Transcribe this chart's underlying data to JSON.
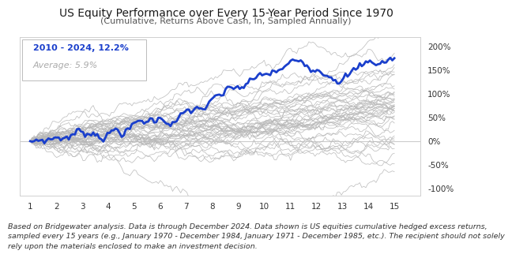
{
  "title": "US Equity Performance over Every 15-Year Period Since 1970",
  "subtitle": "(Cumulative, Returns Above Cash, In, Sampled Annually)",
  "highlight_label": "2010 - 2024, 12.2%",
  "average_label": "Average: 5.9%",
  "xlabel_ticks": [
    1,
    2,
    3,
    4,
    5,
    6,
    7,
    8,
    9,
    10,
    11,
    12,
    13,
    14,
    15
  ],
  "ylabel_ticks": [
    -100,
    -50,
    0,
    50,
    100,
    150,
    200
  ],
  "ylim": [
    -115,
    220
  ],
  "xlim": [
    0.6,
    16.0
  ],
  "footnote_line1": "Based on Bridgewater analysis. Data is through December 2024. Data shown is US equities cumulative hedged excess returns,",
  "footnote_line2": "sampled every 15 years (e.g., January 1970 - December 1984, January 1971 - December 1985, etc.). The recipient should not solely",
  "footnote_line3": "rely upon the materials enclosed to make an investment decision.",
  "highlight_color": "#1a3fcc",
  "gray_color": "#b8b8b8",
  "background_color": "#ffffff",
  "plot_bg_color": "#ffffff",
  "title_fontsize": 10.0,
  "subtitle_fontsize": 8.0,
  "footnote_fontsize": 6.8,
  "label_fontsize": 8.0,
  "tick_fontsize": 7.5,
  "n_gray_series": 45,
  "n_points": 180,
  "highlight_seed": 7,
  "gray_seed": 42
}
